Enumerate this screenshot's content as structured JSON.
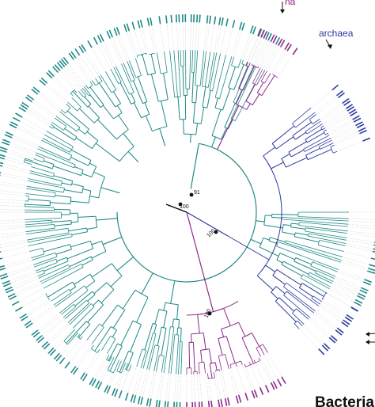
{
  "figure": {
    "group_labels": {
      "archaea": "archaea",
      "bacteria": "Bacteria",
      "eukarya_fragment": "na"
    },
    "bootstrap_values": [
      "100",
      "91",
      "100",
      "100"
    ],
    "colors": {
      "bacteria": "#1f8a87",
      "archaea": "#2c3a9e",
      "eukarya": "#8a2a8a",
      "leader": "#c8c8c8",
      "node": "#111111",
      "root": "#000000"
    }
  }
}
